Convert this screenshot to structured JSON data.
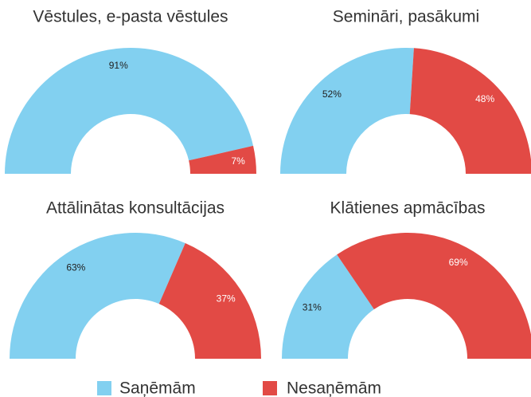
{
  "chart_data": [
    {
      "type": "semi-donut",
      "title": "Vēstules, e-pasta vēstules",
      "categories": [
        "Saņēmām",
        "Nesaņēmām"
      ],
      "values": [
        91,
        7
      ],
      "value_labels": [
        "91%",
        "7%"
      ],
      "colors": [
        "#82d0f0",
        "#e24a45"
      ]
    },
    {
      "type": "semi-donut",
      "title": "Semināri, pasākumi",
      "categories": [
        "Saņēmām",
        "Nesaņēmām"
      ],
      "values": [
        52,
        48
      ],
      "value_labels": [
        "52%",
        "48%"
      ],
      "colors": [
        "#82d0f0",
        "#e24a45"
      ]
    },
    {
      "type": "semi-donut",
      "title": "Attālinātas konsultācijas",
      "categories": [
        "Saņēmām",
        "Nesaņēmām"
      ],
      "values": [
        63,
        37
      ],
      "value_labels": [
        "63%",
        "37%"
      ],
      "colors": [
        "#82d0f0",
        "#e24a45"
      ]
    },
    {
      "type": "semi-donut",
      "title": "Klātienes apmācības",
      "categories": [
        "Saņēmām",
        "Nesaņēmām"
      ],
      "values": [
        31,
        69
      ],
      "value_labels": [
        "31%",
        "69%"
      ],
      "colors": [
        "#82d0f0",
        "#e24a45"
      ]
    }
  ]
}
